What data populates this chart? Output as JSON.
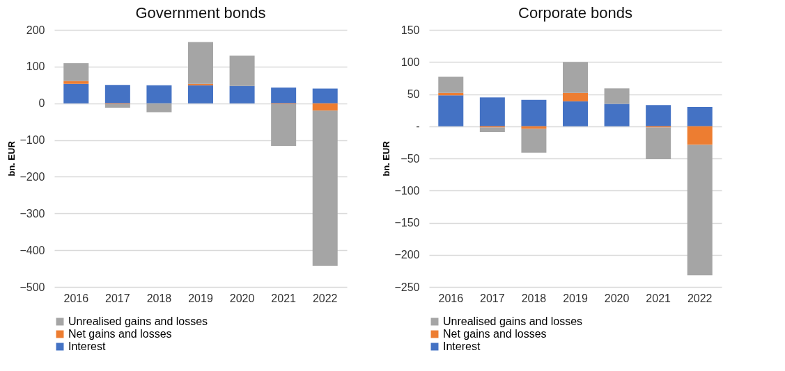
{
  "chart_data": [
    {
      "type": "bar",
      "title": "Government bonds",
      "ylabel": "bn. EUR",
      "stacked": true,
      "categories": [
        "2016",
        "2017",
        "2018",
        "2019",
        "2020",
        "2021",
        "2022"
      ],
      "series": [
        {
          "name": "Interest",
          "color": "#4472c4",
          "values": [
            53,
            50,
            49,
            49,
            47,
            43,
            40
          ]
        },
        {
          "name": "Net gains and losses",
          "color": "#ed7d31",
          "values": [
            8,
            -2,
            0,
            4,
            0,
            -2,
            -20
          ]
        },
        {
          "name": "Unrealised gains and losses",
          "color": "#a5a5a5",
          "values": [
            48,
            -10,
            -24,
            114,
            83,
            -114,
            -423
          ]
        }
      ],
      "ylim": [
        -500,
        200
      ],
      "yticks": [
        -500,
        -400,
        -300,
        -200,
        -100,
        0,
        100,
        200
      ],
      "grid": "y",
      "legend": "bottom"
    },
    {
      "type": "bar",
      "title": "Corporate bonds",
      "ylabel": "bn. EUR",
      "stacked": true,
      "categories": [
        "2016",
        "2017",
        "2018",
        "2019",
        "2020",
        "2021",
        "2022"
      ],
      "series": [
        {
          "name": "Interest",
          "color": "#4472c4",
          "values": [
            48,
            45,
            41,
            39,
            35,
            33,
            30
          ]
        },
        {
          "name": "Net gains and losses",
          "color": "#ed7d31",
          "values": [
            4,
            -2,
            -4,
            13,
            0,
            -2,
            -29
          ]
        },
        {
          "name": "Unrealised gains and losses",
          "color": "#a5a5a5",
          "values": [
            25,
            -7,
            -37,
            48,
            24,
            -49,
            -203
          ]
        }
      ],
      "ylim": [
        -250,
        150
      ],
      "yticks": [
        -250,
        -200,
        -150,
        -100,
        -50,
        {
          "value": 0,
          "label": "-"
        },
        50,
        100,
        150
      ],
      "grid": "y",
      "legend": "bottom"
    }
  ]
}
